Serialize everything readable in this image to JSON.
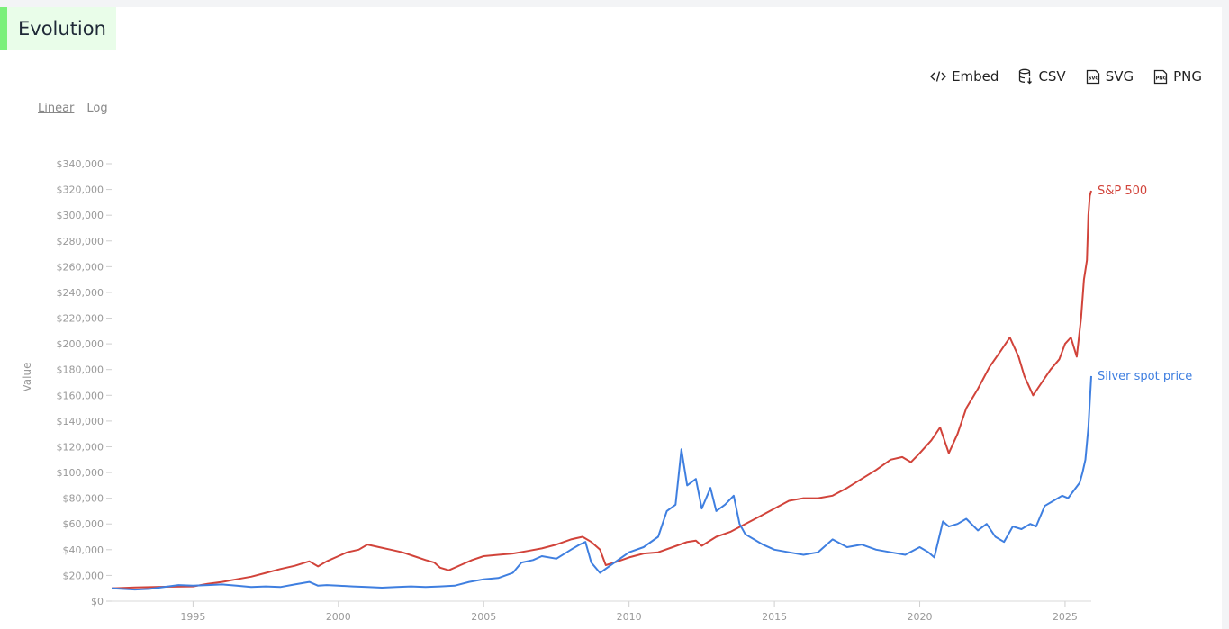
{
  "page": {
    "title": "Evolution",
    "toolbar": {
      "embed_label": "Embed",
      "csv_label": "CSV",
      "svg_label": "SVG",
      "png_label": "PNG"
    },
    "scale": {
      "linear_label": "Linear",
      "log_label": "Log",
      "active": "Linear"
    }
  },
  "chart_data": {
    "type": "line",
    "title": "Evolution",
    "xlabel": "",
    "ylabel": "Value",
    "xlim": [
      1992.2,
      2025.9
    ],
    "ylim": [
      0,
      340000
    ],
    "x_ticks": [
      1995,
      2000,
      2005,
      2010,
      2015,
      2020,
      2025
    ],
    "y_ticks": [
      0,
      20000,
      40000,
      60000,
      80000,
      100000,
      120000,
      140000,
      160000,
      180000,
      200000,
      220000,
      240000,
      260000,
      280000,
      300000,
      320000,
      340000
    ],
    "y_tick_labels": [
      "$0",
      "$20,000",
      "$40,000",
      "$60,000",
      "$80,000",
      "$100,000",
      "$120,000",
      "$140,000",
      "$160,000",
      "$180,000",
      "$200,000",
      "$220,000",
      "$240,000",
      "$260,000",
      "$280,000",
      "$300,000",
      "$320,000",
      "$340,000"
    ],
    "x_tick_labels": [
      "1995",
      "2000",
      "2005",
      "2010",
      "2015",
      "2020",
      "2025"
    ],
    "grid": false,
    "series": [
      {
        "name": "S&P 500",
        "color": "#d1433a",
        "points": [
          [
            1992.2,
            10000
          ],
          [
            1993.0,
            10600
          ],
          [
            1994.0,
            11200
          ],
          [
            1995.0,
            11500
          ],
          [
            1995.5,
            13500
          ],
          [
            1996.0,
            15000
          ],
          [
            1996.5,
            17000
          ],
          [
            1997.0,
            19000
          ],
          [
            1997.5,
            22000
          ],
          [
            1998.0,
            25000
          ],
          [
            1998.5,
            27500
          ],
          [
            1999.0,
            31000
          ],
          [
            1999.3,
            27000
          ],
          [
            1999.6,
            31000
          ],
          [
            2000.0,
            35000
          ],
          [
            2000.3,
            38000
          ],
          [
            2000.7,
            40000
          ],
          [
            2001.0,
            44000
          ],
          [
            2001.4,
            42000
          ],
          [
            2001.8,
            40000
          ],
          [
            2002.2,
            38000
          ],
          [
            2002.6,
            35000
          ],
          [
            2003.0,
            32000
          ],
          [
            2003.3,
            30000
          ],
          [
            2003.5,
            26000
          ],
          [
            2003.8,
            24000
          ],
          [
            2004.2,
            28000
          ],
          [
            2004.6,
            32000
          ],
          [
            2005.0,
            35000
          ],
          [
            2005.5,
            36000
          ],
          [
            2006.0,
            37000
          ],
          [
            2006.5,
            39000
          ],
          [
            2007.0,
            41000
          ],
          [
            2007.5,
            44000
          ],
          [
            2008.0,
            48000
          ],
          [
            2008.4,
            50000
          ],
          [
            2008.7,
            46000
          ],
          [
            2009.0,
            40000
          ],
          [
            2009.2,
            28000
          ],
          [
            2009.5,
            30000
          ],
          [
            2010.0,
            34000
          ],
          [
            2010.5,
            37000
          ],
          [
            2011.0,
            38000
          ],
          [
            2011.5,
            42000
          ],
          [
            2012.0,
            46000
          ],
          [
            2012.3,
            47000
          ],
          [
            2012.5,
            43000
          ],
          [
            2013.0,
            50000
          ],
          [
            2013.5,
            54000
          ],
          [
            2014.0,
            60000
          ],
          [
            2014.5,
            66000
          ],
          [
            2015.0,
            72000
          ],
          [
            2015.5,
            78000
          ],
          [
            2016.0,
            80000
          ],
          [
            2016.5,
            80000
          ],
          [
            2017.0,
            82000
          ],
          [
            2017.5,
            88000
          ],
          [
            2018.0,
            95000
          ],
          [
            2018.5,
            102000
          ],
          [
            2019.0,
            110000
          ],
          [
            2019.4,
            112000
          ],
          [
            2019.7,
            108000
          ],
          [
            2020.0,
            115000
          ],
          [
            2020.4,
            125000
          ],
          [
            2020.7,
            135000
          ],
          [
            2021.0,
            115000
          ],
          [
            2021.3,
            130000
          ],
          [
            2021.6,
            150000
          ],
          [
            2022.0,
            165000
          ],
          [
            2022.4,
            182000
          ],
          [
            2022.8,
            195000
          ],
          [
            2023.1,
            205000
          ],
          [
            2023.4,
            190000
          ],
          [
            2023.6,
            175000
          ],
          [
            2023.9,
            160000
          ],
          [
            2024.2,
            170000
          ],
          [
            2024.5,
            180000
          ],
          [
            2024.8,
            188000
          ],
          [
            2025.0,
            200000
          ],
          [
            2025.2,
            205000
          ],
          [
            2025.4,
            190000
          ],
          [
            2025.55,
            220000
          ],
          [
            2025.65,
            250000
          ],
          [
            2025.75,
            265000
          ],
          [
            2025.8,
            300000
          ],
          [
            2025.85,
            315000
          ],
          [
            2025.9,
            319000
          ]
        ]
      },
      {
        "name": "Silver spot price",
        "color": "#3f7fe0",
        "points": [
          [
            1992.2,
            10000
          ],
          [
            1993.0,
            9000
          ],
          [
            1993.5,
            9500
          ],
          [
            1994.0,
            11000
          ],
          [
            1994.5,
            12500
          ],
          [
            1995.0,
            12000
          ],
          [
            1995.5,
            12500
          ],
          [
            1996.0,
            13000
          ],
          [
            1996.5,
            12000
          ],
          [
            1997.0,
            11000
          ],
          [
            1997.5,
            11500
          ],
          [
            1998.0,
            11000
          ],
          [
            1998.5,
            13000
          ],
          [
            1999.0,
            15000
          ],
          [
            1999.3,
            12000
          ],
          [
            1999.6,
            12500
          ],
          [
            2000.0,
            12000
          ],
          [
            2000.5,
            11500
          ],
          [
            2001.0,
            11000
          ],
          [
            2001.5,
            10500
          ],
          [
            2002.0,
            11000
          ],
          [
            2002.5,
            11500
          ],
          [
            2003.0,
            11000
          ],
          [
            2003.5,
            11500
          ],
          [
            2004.0,
            12000
          ],
          [
            2004.5,
            15000
          ],
          [
            2005.0,
            17000
          ],
          [
            2005.5,
            18000
          ],
          [
            2006.0,
            22000
          ],
          [
            2006.3,
            30000
          ],
          [
            2006.7,
            32000
          ],
          [
            2007.0,
            35000
          ],
          [
            2007.5,
            33000
          ],
          [
            2008.0,
            40000
          ],
          [
            2008.3,
            44000
          ],
          [
            2008.5,
            46000
          ],
          [
            2008.7,
            30000
          ],
          [
            2009.0,
            22000
          ],
          [
            2009.5,
            30000
          ],
          [
            2010.0,
            38000
          ],
          [
            2010.5,
            42000
          ],
          [
            2011.0,
            50000
          ],
          [
            2011.3,
            70000
          ],
          [
            2011.6,
            75000
          ],
          [
            2011.8,
            118000
          ],
          [
            2012.0,
            90000
          ],
          [
            2012.3,
            95000
          ],
          [
            2012.5,
            72000
          ],
          [
            2012.8,
            88000
          ],
          [
            2013.0,
            70000
          ],
          [
            2013.3,
            75000
          ],
          [
            2013.6,
            82000
          ],
          [
            2013.8,
            60000
          ],
          [
            2014.0,
            52000
          ],
          [
            2014.3,
            48000
          ],
          [
            2014.6,
            44000
          ],
          [
            2015.0,
            40000
          ],
          [
            2015.5,
            38000
          ],
          [
            2016.0,
            36000
          ],
          [
            2016.5,
            38000
          ],
          [
            2017.0,
            48000
          ],
          [
            2017.5,
            42000
          ],
          [
            2018.0,
            44000
          ],
          [
            2018.5,
            40000
          ],
          [
            2019.0,
            38000
          ],
          [
            2019.5,
            36000
          ],
          [
            2020.0,
            42000
          ],
          [
            2020.3,
            38000
          ],
          [
            2020.5,
            34000
          ],
          [
            2020.8,
            62000
          ],
          [
            2021.0,
            58000
          ],
          [
            2021.3,
            60000
          ],
          [
            2021.6,
            64000
          ],
          [
            2022.0,
            55000
          ],
          [
            2022.3,
            60000
          ],
          [
            2022.6,
            50000
          ],
          [
            2022.9,
            46000
          ],
          [
            2023.2,
            58000
          ],
          [
            2023.5,
            56000
          ],
          [
            2023.8,
            60000
          ],
          [
            2024.0,
            58000
          ],
          [
            2024.3,
            74000
          ],
          [
            2024.6,
            78000
          ],
          [
            2024.9,
            82000
          ],
          [
            2025.1,
            80000
          ],
          [
            2025.3,
            86000
          ],
          [
            2025.5,
            92000
          ],
          [
            2025.6,
            100000
          ],
          [
            2025.7,
            110000
          ],
          [
            2025.8,
            135000
          ],
          [
            2025.9,
            175000
          ]
        ]
      }
    ]
  }
}
